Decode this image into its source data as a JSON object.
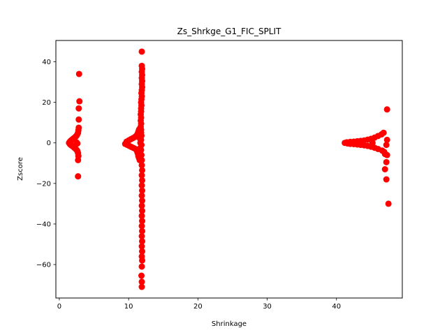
{
  "chart_data": {
    "type": "scatter",
    "title": "Zs_Shrkge_G1_FIC_SPLIT",
    "xlabel": "Shrinkage",
    "ylabel": "Zscore",
    "xlim": [
      -0.5,
      49.5
    ],
    "ylim": [
      -76.5,
      50.5
    ],
    "xticks": [
      0,
      10,
      20,
      30,
      40
    ],
    "yticks": [
      -60,
      -40,
      -20,
      0,
      20,
      40
    ],
    "ytick_labels": [
      "−60",
      "−40",
      "−20",
      "0",
      "20",
      "40"
    ],
    "grid": false,
    "marker_color": "#ff0000",
    "series": [
      {
        "name": "",
        "points": [
          [
            1.4,
            0.0
          ],
          [
            1.5,
            0.5
          ],
          [
            1.5,
            -0.5
          ],
          [
            1.6,
            0.9
          ],
          [
            1.6,
            -0.9
          ],
          [
            1.7,
            1.2
          ],
          [
            1.7,
            -1.1
          ],
          [
            1.8,
            1.5
          ],
          [
            1.8,
            -1.4
          ],
          [
            1.9,
            1.8
          ],
          [
            1.9,
            -1.6
          ],
          [
            2.0,
            2.1
          ],
          [
            2.0,
            -1.9
          ],
          [
            2.1,
            2.3
          ],
          [
            2.1,
            -2.2
          ],
          [
            2.2,
            2.6
          ],
          [
            2.2,
            -2.5
          ],
          [
            2.3,
            2.9
          ],
          [
            2.3,
            -2.8
          ],
          [
            2.4,
            3.2
          ],
          [
            2.4,
            -3.1
          ],
          [
            2.5,
            3.6
          ],
          [
            2.5,
            -3.5
          ],
          [
            2.6,
            4.2
          ],
          [
            2.6,
            -4.0
          ],
          [
            2.7,
            5.0
          ],
          [
            2.7,
            -5.0
          ],
          [
            2.75,
            6.2
          ],
          [
            2.75,
            -6.5
          ],
          [
            2.8,
            7.5
          ],
          [
            2.7,
            -8.5
          ],
          [
            2.8,
            11.5
          ],
          [
            2.8,
            17.0
          ],
          [
            2.9,
            20.5
          ],
          [
            2.85,
            34.0
          ],
          [
            2.7,
            -16.5
          ],
          [
            2.5,
            0.2
          ],
          [
            2.6,
            -0.3
          ],
          [
            9.5,
            -0.5
          ],
          [
            9.7,
            0.6
          ],
          [
            9.8,
            -1.0
          ],
          [
            10.0,
            1.2
          ],
          [
            10.1,
            -1.5
          ],
          [
            10.3,
            1.8
          ],
          [
            10.4,
            -2.0
          ],
          [
            10.6,
            2.3
          ],
          [
            10.7,
            -2.5
          ],
          [
            10.9,
            2.9
          ],
          [
            11.0,
            -3.0
          ],
          [
            11.1,
            3.5
          ],
          [
            11.2,
            -4.0
          ],
          [
            11.3,
            4.5
          ],
          [
            11.4,
            5.5
          ],
          [
            11.3,
            -5.0
          ],
          [
            11.5,
            6.5
          ],
          [
            11.4,
            -6.5
          ],
          [
            11.6,
            7.0
          ],
          [
            11.5,
            -7.5
          ],
          [
            11.6,
            -8.5
          ],
          [
            11.7,
            0.0
          ],
          [
            11.65,
            2.0
          ],
          [
            11.7,
            -2.5
          ],
          [
            11.9,
            45.0
          ],
          [
            11.9,
            38.0
          ],
          [
            11.95,
            36.5
          ],
          [
            11.9,
            35.0
          ],
          [
            11.95,
            33.5
          ],
          [
            11.9,
            32.0
          ],
          [
            11.95,
            30.5
          ],
          [
            11.9,
            29.0
          ],
          [
            11.95,
            27.5
          ],
          [
            11.9,
            26.0
          ],
          [
            11.85,
            24.5
          ],
          [
            11.9,
            23.0
          ],
          [
            11.85,
            21.5
          ],
          [
            11.8,
            20.0
          ],
          [
            11.85,
            18.5
          ],
          [
            11.8,
            17.0
          ],
          [
            11.8,
            15.5
          ],
          [
            11.75,
            14.0
          ],
          [
            11.8,
            12.5
          ],
          [
            11.75,
            11.0
          ],
          [
            11.8,
            9.5
          ],
          [
            11.75,
            8.0
          ],
          [
            11.8,
            6.5
          ],
          [
            11.8,
            5.0
          ],
          [
            11.85,
            3.5
          ],
          [
            11.8,
            1.5
          ],
          [
            11.85,
            -1.0
          ],
          [
            11.8,
            -3.5
          ],
          [
            11.85,
            -6.0
          ],
          [
            11.9,
            -8.5
          ],
          [
            11.9,
            -11.0
          ],
          [
            11.95,
            -13.5
          ],
          [
            11.9,
            -16.0
          ],
          [
            11.95,
            -18.5
          ],
          [
            11.9,
            -21.0
          ],
          [
            11.95,
            -23.5
          ],
          [
            11.9,
            -26.0
          ],
          [
            11.95,
            -28.5
          ],
          [
            11.9,
            -31.0
          ],
          [
            11.95,
            -33.5
          ],
          [
            11.9,
            -36.0
          ],
          [
            11.95,
            -38.5
          ],
          [
            11.9,
            -41.0
          ],
          [
            11.95,
            -43.5
          ],
          [
            11.9,
            -46.0
          ],
          [
            11.95,
            -48.5
          ],
          [
            11.9,
            -51.0
          ],
          [
            11.95,
            -53.5
          ],
          [
            11.9,
            -56.0
          ],
          [
            11.95,
            -58.0
          ],
          [
            11.9,
            -61.0
          ],
          [
            11.85,
            -65.5
          ],
          [
            11.9,
            -68.5
          ],
          [
            11.9,
            -71.0
          ],
          [
            41.2,
            0.0
          ],
          [
            41.5,
            0.3
          ],
          [
            41.6,
            -0.3
          ],
          [
            42.0,
            0.5
          ],
          [
            42.0,
            -0.5
          ],
          [
            42.5,
            0.6
          ],
          [
            42.5,
            -0.6
          ],
          [
            43.0,
            0.8
          ],
          [
            43.0,
            -0.8
          ],
          [
            43.5,
            1.0
          ],
          [
            43.5,
            -1.0
          ],
          [
            44.0,
            1.2
          ],
          [
            44.0,
            -1.2
          ],
          [
            44.5,
            1.6
          ],
          [
            44.5,
            -1.5
          ],
          [
            45.0,
            2.0
          ],
          [
            45.0,
            -1.9
          ],
          [
            45.5,
            2.6
          ],
          [
            45.5,
            -2.4
          ],
          [
            46.0,
            3.4
          ],
          [
            46.0,
            -3.0
          ],
          [
            46.5,
            4.2
          ],
          [
            46.6,
            -3.8
          ],
          [
            46.8,
            5.0
          ],
          [
            46.9,
            -4.5
          ],
          [
            47.0,
            -5.5
          ],
          [
            47.2,
            -1.0
          ],
          [
            47.3,
            1.5
          ],
          [
            47.3,
            -6.0
          ],
          [
            47.2,
            -9.5
          ],
          [
            47.0,
            -13.0
          ],
          [
            47.2,
            -18.0
          ],
          [
            47.3,
            16.5
          ],
          [
            47.5,
            -30.0
          ],
          [
            43.8,
            0.0
          ],
          [
            45.2,
            0.0
          ]
        ]
      }
    ]
  }
}
